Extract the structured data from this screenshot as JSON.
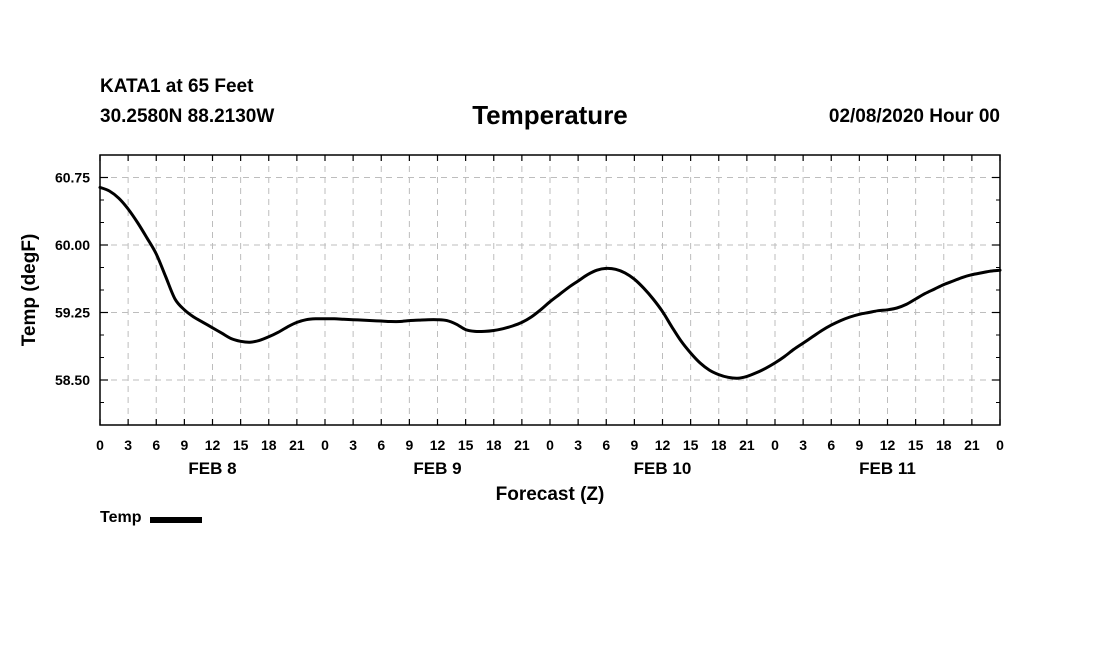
{
  "header": {
    "station": "KATA1 at 65 Feet",
    "coords": "30.2580N 88.2130W",
    "run_time": "02/08/2020 Hour 00"
  },
  "chart_data": {
    "type": "line",
    "title": "Temperature",
    "xlabel": "Forecast (Z)",
    "ylabel": "Temp (degF)",
    "xlim": [
      0,
      96
    ],
    "ylim": [
      58.0,
      61.0
    ],
    "yticks": [
      58.5,
      59.25,
      60.0,
      60.75
    ],
    "ytick_labels": [
      "58.50",
      "59.25",
      "60.00",
      "60.75"
    ],
    "y_minor_step": 0.25,
    "x_step": 3,
    "xtick_labels": [
      "0",
      "3",
      "6",
      "9",
      "12",
      "15",
      "18",
      "21",
      "0",
      "3",
      "6",
      "9",
      "12",
      "15",
      "18",
      "21",
      "0",
      "3",
      "6",
      "9",
      "12",
      "15",
      "18",
      "21",
      "0",
      "3",
      "6",
      "9",
      "12",
      "15",
      "18",
      "21",
      "0"
    ],
    "day_labels": [
      {
        "label": "FEB 8",
        "x": 12
      },
      {
        "label": "FEB 9",
        "x": 36
      },
      {
        "label": "FEB 10",
        "x": 60
      },
      {
        "label": "FEB 11",
        "x": 84
      }
    ],
    "grid": true,
    "legend_position": "bottom-left",
    "color": "#000000",
    "series": [
      {
        "name": "Temp",
        "x": [
          0,
          1,
          2,
          3,
          4,
          5,
          6,
          7,
          8,
          9,
          10,
          11,
          12,
          13,
          14,
          15,
          16,
          17,
          18,
          19,
          20,
          21,
          22,
          23,
          24,
          25,
          26,
          27,
          28,
          29,
          30,
          31,
          32,
          33,
          34,
          35,
          36,
          37,
          38,
          39,
          40,
          41,
          42,
          43,
          44,
          45,
          46,
          47,
          48,
          49,
          50,
          51,
          52,
          53,
          54,
          55,
          56,
          57,
          58,
          59,
          60,
          61,
          62,
          63,
          64,
          65,
          66,
          67,
          68,
          69,
          70,
          71,
          72,
          73,
          74,
          75,
          76,
          77,
          78,
          79,
          80,
          81,
          82,
          83,
          84,
          85,
          86,
          87,
          88,
          89,
          90,
          91,
          92,
          93,
          94,
          95,
          96
        ],
        "values": [
          60.64,
          60.6,
          60.52,
          60.4,
          60.25,
          60.08,
          59.9,
          59.65,
          59.4,
          59.28,
          59.2,
          59.14,
          59.08,
          59.02,
          58.96,
          58.93,
          58.92,
          58.94,
          58.98,
          59.03,
          59.09,
          59.14,
          59.17,
          59.18,
          59.18,
          59.18,
          59.175,
          59.17,
          59.165,
          59.16,
          59.155,
          59.15,
          59.15,
          59.16,
          59.165,
          59.17,
          59.17,
          59.16,
          59.12,
          59.06,
          59.04,
          59.04,
          59.05,
          59.07,
          59.1,
          59.14,
          59.2,
          59.28,
          59.37,
          59.45,
          59.53,
          59.6,
          59.67,
          59.72,
          59.74,
          59.73,
          59.69,
          59.62,
          59.52,
          59.4,
          59.26,
          59.09,
          58.93,
          58.8,
          58.69,
          58.61,
          58.56,
          58.53,
          58.52,
          58.54,
          58.58,
          58.63,
          58.69,
          58.76,
          58.84,
          58.91,
          58.98,
          59.05,
          59.11,
          59.16,
          59.2,
          59.23,
          59.25,
          59.27,
          59.28,
          59.3,
          59.34,
          59.4,
          59.46,
          59.51,
          59.56,
          59.6,
          59.64,
          59.67,
          59.69,
          59.71,
          59.72
        ]
      }
    ]
  }
}
